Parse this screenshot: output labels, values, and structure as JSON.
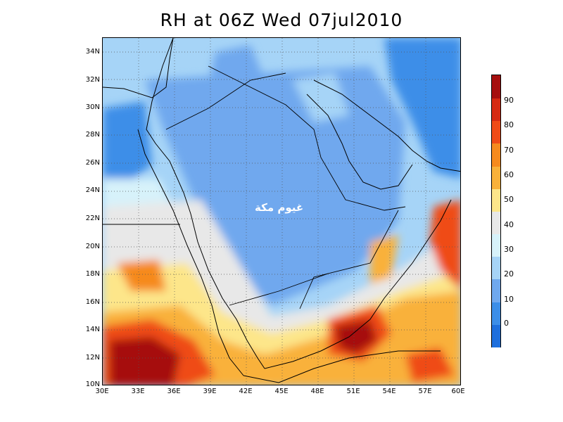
{
  "title": "RH at 06Z Wed 07jul2010",
  "overlay_text": "غيوم مكة",
  "map": {
    "lon_range": [
      30,
      60
    ],
    "lat_range": [
      10,
      35
    ],
    "lat_labels": [
      "34N",
      "32N",
      "30N",
      "28N",
      "26N",
      "24N",
      "22N",
      "20N",
      "18N",
      "16N",
      "14N",
      "12N",
      "10N"
    ],
    "lon_labels": [
      "30E",
      "33E",
      "36E",
      "39E",
      "42E",
      "45E",
      "48E",
      "51E",
      "54E",
      "57E",
      "60E"
    ],
    "grid": true
  },
  "colorbar": {
    "labels": [
      "0",
      "10",
      "20",
      "30",
      "40",
      "50",
      "60",
      "70",
      "80",
      "90"
    ],
    "colors": [
      "#1e6fdd",
      "#3c8ee8",
      "#6fa8ee",
      "#a6d4f7",
      "#d7f2fa",
      "#e8e8e8",
      "#fde68a",
      "#f9b13a",
      "#f68a1e",
      "#ef4b17",
      "#d62a13",
      "#a60f0f"
    ]
  }
}
